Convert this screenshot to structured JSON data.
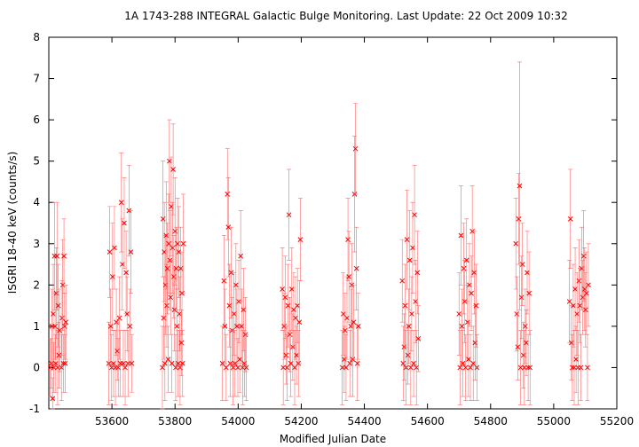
{
  "chart_data": {
    "type": "scatter",
    "title": "1A 1743-288   INTEGRAL Galactic Bulge Monitoring.  Last Update: 22 Oct 2009 10:32",
    "xlabel": "Modified Julian Date",
    "ylabel": "ISGRI 18-40 keV (counts/s)",
    "xlim": [
      53400,
      55200
    ],
    "ylim": [
      -1,
      8
    ],
    "x_ticks": [
      53600,
      53800,
      54000,
      54200,
      54400,
      54600,
      54800,
      55000,
      55200
    ],
    "y_ticks": [
      -1,
      0,
      1,
      2,
      3,
      4,
      5,
      6,
      7,
      8
    ],
    "grid": false,
    "marker": "x",
    "colors": {
      "points": "#ff0000",
      "errorbars": "#ff6666",
      "axes": "#000000"
    },
    "series": [
      {
        "points": [
          [
            53405,
            0.0,
            0.7
          ],
          [
            53408,
            0.1,
            0.6
          ],
          [
            53410,
            1.0,
            0.9
          ],
          [
            53412,
            -0.75,
            0.5
          ],
          [
            53414,
            1.3,
            1.2
          ],
          [
            53416,
            0.0,
            0.6
          ],
          [
            53418,
            2.7,
            1.3
          ],
          [
            53420,
            1.0,
            0.8
          ],
          [
            53422,
            0.1,
            0.7
          ],
          [
            53424,
            1.8,
            1.1
          ],
          [
            53426,
            2.7,
            1.3
          ],
          [
            53428,
            0.0,
            0.9
          ],
          [
            53430,
            1.5,
            1.0
          ],
          [
            53432,
            0.3,
            0.8
          ],
          [
            53434,
            0.9,
            1.0
          ],
          [
            53440,
            0.0,
            0.8
          ],
          [
            53442,
            1.2,
            0.9
          ],
          [
            53444,
            2.0,
            1.1
          ],
          [
            53446,
            0.1,
            0.7
          ],
          [
            53448,
            2.7,
            0.9
          ],
          [
            53450,
            1.0,
            0.8
          ],
          [
            53452,
            0.1,
            0.7
          ],
          [
            53454,
            1.1,
            0.9
          ],
          [
            53590,
            0.1,
            1.0
          ],
          [
            53593,
            2.8,
            1.1
          ],
          [
            53596,
            1.0,
            0.9
          ],
          [
            53599,
            0.0,
            0.8
          ],
          [
            53602,
            2.2,
            1.3
          ],
          [
            53605,
            0.1,
            0.8
          ],
          [
            53608,
            2.9,
            1.0
          ],
          [
            53611,
            0.0,
            0.9
          ],
          [
            53614,
            1.1,
            0.8
          ],
          [
            53617,
            0.4,
            0.7
          ],
          [
            53620,
            0.0,
            0.7
          ],
          [
            53624,
            1.2,
            1.0
          ],
          [
            53627,
            0.1,
            0.8
          ],
          [
            53630,
            4.0,
            1.2
          ],
          [
            53633,
            2.5,
            1.1
          ],
          [
            53636,
            0.1,
            0.8
          ],
          [
            53639,
            3.5,
            1.1
          ],
          [
            53642,
            0.0,
            0.9
          ],
          [
            53645,
            2.3,
            1.0
          ],
          [
            53648,
            1.3,
            0.9
          ],
          [
            53651,
            0.1,
            0.8
          ],
          [
            53654,
            3.8,
            1.1
          ],
          [
            53657,
            1.0,
            0.9
          ],
          [
            53660,
            2.8,
            1.0
          ],
          [
            53663,
            0.1,
            0.7
          ],
          [
            53760,
            0.0,
            1.0
          ],
          [
            53762,
            3.6,
            1.4
          ],
          [
            53764,
            1.2,
            1.0
          ],
          [
            53766,
            2.8,
            1.2
          ],
          [
            53768,
            0.1,
            0.9
          ],
          [
            53770,
            2.0,
            1.2
          ],
          [
            53772,
            3.2,
            1.3
          ],
          [
            53774,
            1.5,
            1.0
          ],
          [
            53776,
            2.4,
            1.1
          ],
          [
            53778,
            0.2,
            0.8
          ],
          [
            53780,
            3.0,
            1.2
          ],
          [
            53782,
            5.0,
            1.0
          ],
          [
            53784,
            2.6,
            1.2
          ],
          [
            53786,
            1.7,
            0.9
          ],
          [
            53788,
            3.9,
            1.2
          ],
          [
            53790,
            0.1,
            0.7
          ],
          [
            53792,
            2.9,
            1.1
          ],
          [
            53794,
            4.8,
            1.1
          ],
          [
            53796,
            2.2,
            1.0
          ],
          [
            53798,
            1.4,
            1.0
          ],
          [
            53800,
            3.3,
            1.3
          ],
          [
            53802,
            0.0,
            0.8
          ],
          [
            53804,
            2.4,
            1.0
          ],
          [
            53806,
            1.0,
            0.9
          ],
          [
            53808,
            3.0,
            1.1
          ],
          [
            53810,
            0.1,
            0.8
          ],
          [
            53812,
            2.8,
            1.1
          ],
          [
            53814,
            1.3,
            0.9
          ],
          [
            53816,
            0.0,
            0.9
          ],
          [
            53818,
            2.4,
            1.0
          ],
          [
            53820,
            0.6,
            0.8
          ],
          [
            53822,
            1.8,
            1.0
          ],
          [
            53824,
            0.1,
            0.8
          ],
          [
            53826,
            3.0,
            1.2
          ],
          [
            53950,
            0.1,
            0.9
          ],
          [
            53955,
            2.1,
            1.1
          ],
          [
            53958,
            1.0,
            0.9
          ],
          [
            53962,
            0.0,
            0.8
          ],
          [
            53966,
            4.2,
            1.1
          ],
          [
            53969,
            3.4,
            1.2
          ],
          [
            53972,
            1.5,
            1.0
          ],
          [
            53975,
            0.1,
            0.8
          ],
          [
            53978,
            2.3,
            1.1
          ],
          [
            53981,
            0.9,
            0.8
          ],
          [
            53984,
            0.0,
            0.9
          ],
          [
            53987,
            1.3,
            1.0
          ],
          [
            53990,
            0.1,
            0.8
          ],
          [
            53993,
            2.0,
            1.0
          ],
          [
            53996,
            1.0,
            0.9
          ],
          [
            53999,
            0.0,
            0.7
          ],
          [
            54002,
            1.6,
            1.0
          ],
          [
            54005,
            0.2,
            0.8
          ],
          [
            54008,
            2.7,
            1.1
          ],
          [
            54011,
            1.0,
            0.9
          ],
          [
            54014,
            0.0,
            0.9
          ],
          [
            54017,
            1.4,
            1.0
          ],
          [
            54020,
            0.1,
            0.8
          ],
          [
            54023,
            0.8,
            0.9
          ],
          [
            54026,
            0.0,
            0.8
          ],
          [
            54140,
            1.9,
            1.0
          ],
          [
            54143,
            0.0,
            0.9
          ],
          [
            54146,
            1.0,
            0.8
          ],
          [
            54149,
            1.7,
            1.0
          ],
          [
            54152,
            0.3,
            0.7
          ],
          [
            54155,
            0.0,
            0.8
          ],
          [
            54158,
            1.5,
            1.0
          ],
          [
            54161,
            3.7,
            1.1
          ],
          [
            54164,
            0.8,
            0.9
          ],
          [
            54167,
            0.1,
            0.8
          ],
          [
            54170,
            1.9,
            1.0
          ],
          [
            54173,
            0.5,
            0.8
          ],
          [
            54176,
            1.4,
            0.9
          ],
          [
            54179,
            0.0,
            0.9
          ],
          [
            54182,
            1.2,
            1.0
          ],
          [
            54185,
            0.3,
            0.7
          ],
          [
            54188,
            1.5,
            0.9
          ],
          [
            54191,
            0.1,
            0.8
          ],
          [
            54194,
            1.1,
            1.0
          ],
          [
            54197,
            3.1,
            1.0
          ],
          [
            54330,
            0.0,
            0.9
          ],
          [
            54333,
            1.3,
            1.0
          ],
          [
            54336,
            0.2,
            0.8
          ],
          [
            54339,
            0.9,
            0.9
          ],
          [
            54342,
            0.0,
            0.8
          ],
          [
            54345,
            1.2,
            1.0
          ],
          [
            54348,
            3.1,
            1.0
          ],
          [
            54351,
            2.2,
            1.1
          ],
          [
            54354,
            0.1,
            0.8
          ],
          [
            54357,
            1.0,
            0.9
          ],
          [
            54360,
            2.0,
            1.0
          ],
          [
            54363,
            0.2,
            0.9
          ],
          [
            54366,
            1.1,
            0.9
          ],
          [
            54369,
            4.2,
            1.4
          ],
          [
            54372,
            5.3,
            1.1
          ],
          [
            54375,
            2.4,
            1.0
          ],
          [
            54378,
            0.1,
            0.9
          ],
          [
            54381,
            1.0,
            0.8
          ],
          [
            54520,
            2.1,
            1.0
          ],
          [
            54523,
            0.1,
            0.9
          ],
          [
            54526,
            0.5,
            0.8
          ],
          [
            54529,
            1.5,
            1.0
          ],
          [
            54532,
            0.0,
            0.9
          ],
          [
            54535,
            3.1,
            1.2
          ],
          [
            54538,
            0.3,
            0.7
          ],
          [
            54541,
            1.0,
            0.9
          ],
          [
            54544,
            2.6,
            1.2
          ],
          [
            54547,
            0.0,
            0.9
          ],
          [
            54550,
            1.3,
            0.9
          ],
          [
            54553,
            2.9,
            1.1
          ],
          [
            54556,
            0.1,
            0.8
          ],
          [
            54559,
            3.7,
            1.2
          ],
          [
            54562,
            1.6,
            1.0
          ],
          [
            54565,
            0.0,
            0.9
          ],
          [
            54568,
            2.3,
            1.0
          ],
          [
            54571,
            0.7,
            0.8
          ],
          [
            54700,
            1.3,
            1.0
          ],
          [
            54703,
            0.0,
            0.9
          ],
          [
            54706,
            3.2,
            1.2
          ],
          [
            54709,
            1.0,
            0.9
          ],
          [
            54712,
            0.1,
            0.8
          ],
          [
            54715,
            2.4,
            1.1
          ],
          [
            54718,
            1.6,
            1.0
          ],
          [
            54721,
            0.0,
            0.8
          ],
          [
            54724,
            2.6,
            1.0
          ],
          [
            54727,
            1.1,
            0.9
          ],
          [
            54730,
            0.2,
            0.9
          ],
          [
            54733,
            2.0,
            1.0
          ],
          [
            54736,
            0.0,
            0.8
          ],
          [
            54739,
            1.8,
            0.9
          ],
          [
            54742,
            3.3,
            1.1
          ],
          [
            54745,
            0.1,
            0.9
          ],
          [
            54748,
            2.3,
            1.0
          ],
          [
            54751,
            0.6,
            0.9
          ],
          [
            54754,
            1.5,
            1.0
          ],
          [
            54757,
            0.0,
            0.8
          ],
          [
            54880,
            3.0,
            1.1
          ],
          [
            54883,
            1.3,
            0.9
          ],
          [
            54886,
            0.5,
            0.8
          ],
          [
            54889,
            3.6,
            1.1
          ],
          [
            54892,
            4.4,
            3.0
          ],
          [
            54895,
            0.0,
            0.9
          ],
          [
            54898,
            1.7,
            1.0
          ],
          [
            54901,
            2.5,
            1.0
          ],
          [
            54904,
            0.3,
            0.8
          ],
          [
            54907,
            0.0,
            0.9
          ],
          [
            54910,
            1.0,
            0.9
          ],
          [
            54913,
            0.6,
            0.8
          ],
          [
            54916,
            2.3,
            1.0
          ],
          [
            54919,
            0.0,
            0.8
          ],
          [
            54922,
            1.8,
            1.0
          ],
          [
            54925,
            0.0,
            0.9
          ],
          [
            55050,
            1.6,
            1.0
          ],
          [
            55053,
            3.6,
            1.2
          ],
          [
            55056,
            0.6,
            0.9
          ],
          [
            55059,
            0.0,
            0.8
          ],
          [
            55062,
            1.5,
            1.0
          ],
          [
            55065,
            0.0,
            0.9
          ],
          [
            55068,
            1.9,
            1.0
          ],
          [
            55071,
            0.2,
            0.8
          ],
          [
            55074,
            1.3,
            1.0
          ],
          [
            55077,
            0.0,
            0.9
          ],
          [
            55080,
            2.1,
            1.0
          ],
          [
            55083,
            1.5,
            0.9
          ],
          [
            55086,
            0.0,
            0.8
          ],
          [
            55089,
            2.4,
            1.0
          ],
          [
            55092,
            1.7,
            0.9
          ],
          [
            55095,
            2.7,
            1.1
          ],
          [
            55098,
            1.9,
            1.0
          ],
          [
            55101,
            1.4,
            0.9
          ],
          [
            55104,
            1.8,
            1.0
          ],
          [
            55107,
            0.0,
            0.8
          ],
          [
            55110,
            2.0,
            1.0
          ]
        ]
      }
    ]
  }
}
